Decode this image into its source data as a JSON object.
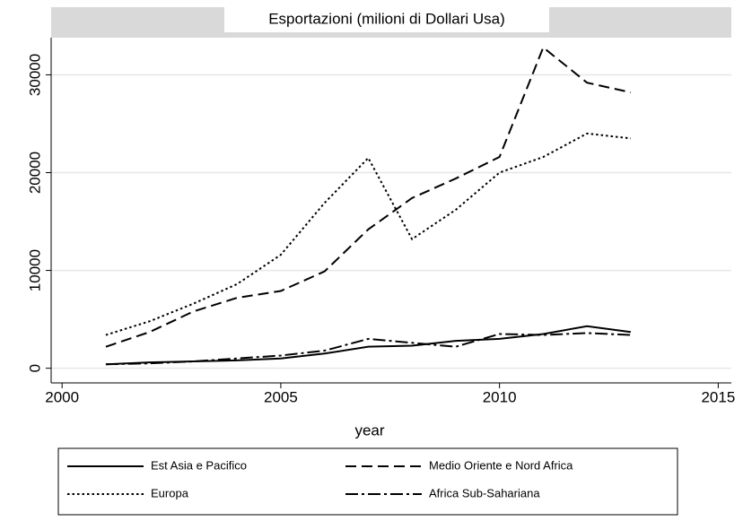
{
  "chart_data": {
    "type": "line",
    "title": "Esportazioni (milioni di Dollari Usa)",
    "x_label": "year",
    "x": [
      2001,
      2002,
      2003,
      2004,
      2005,
      2006,
      2007,
      2008,
      2009,
      2010,
      2011,
      2012,
      2013
    ],
    "series": [
      {
        "name": "Est Asia e Pacifico",
        "color": "#000000",
        "dash": "solid",
        "values": [
          400,
          600,
          700,
          800,
          1000,
          1500,
          2200,
          2300,
          2800,
          3000,
          3500,
          4300,
          3700
        ]
      },
      {
        "name": "Medio Oriente e Nord Africa",
        "color": "#000000",
        "dash": "dashed",
        "values": [
          2200,
          3700,
          5800,
          7200,
          7900,
          9900,
          14200,
          17400,
          19400,
          21600,
          32800,
          29200,
          28200
        ]
      },
      {
        "name": "Europa",
        "color": "#000000",
        "dash": "dotted",
        "values": [
          3400,
          4800,
          6600,
          8600,
          11600,
          16900,
          21500,
          13200,
          16200,
          20000,
          21600,
          24000,
          23500
        ]
      },
      {
        "name": "Africa Sub-Sahariana",
        "color": "#000000",
        "dash": "dashdot",
        "values": [
          400,
          500,
          700,
          1000,
          1300,
          1800,
          3000,
          2600,
          2200,
          3500,
          3400,
          3600,
          3400
        ]
      }
    ],
    "xlim": [
      1999.75,
      2015.3
    ],
    "xticks": [
      2000,
      2005,
      2010,
      2015
    ],
    "ylim": [
      -1500,
      33800
    ],
    "yticks": [
      0,
      10000,
      20000,
      30000
    ],
    "grid": true
  }
}
